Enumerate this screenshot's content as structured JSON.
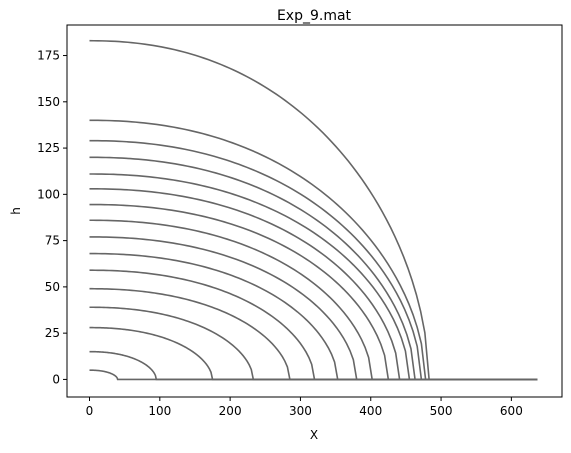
{
  "chart_data": {
    "type": "line",
    "title": "Exp_9.mat",
    "xlabel": "X",
    "ylabel": "h",
    "xlim": [
      -32,
      672
    ],
    "ylim": [
      -9.5,
      191.5
    ],
    "xticks": [
      0,
      100,
      200,
      300,
      400,
      500,
      600
    ],
    "yticks": [
      0,
      25,
      50,
      75,
      100,
      125,
      150,
      175
    ],
    "grid": false,
    "legend": "none",
    "line_color": "#666666",
    "series": [
      {
        "h0": 5,
        "front": 40
      },
      {
        "h0": 15,
        "front": 95
      },
      {
        "h0": 28,
        "front": 175
      },
      {
        "h0": 39,
        "front": 233
      },
      {
        "h0": 49,
        "front": 285
      },
      {
        "h0": 59,
        "front": 320
      },
      {
        "h0": 68,
        "front": 353
      },
      {
        "h0": 77,
        "front": 380
      },
      {
        "h0": 86,
        "front": 402
      },
      {
        "h0": 94.5,
        "front": 425
      },
      {
        "h0": 103,
        "front": 441
      },
      {
        "h0": 111,
        "front": 455
      },
      {
        "h0": 120,
        "front": 463
      },
      {
        "h0": 129,
        "front": 472
      },
      {
        "h0": 140,
        "front": 478
      },
      {
        "h0": 183,
        "front": 483
      }
    ],
    "x_end": 637
  }
}
